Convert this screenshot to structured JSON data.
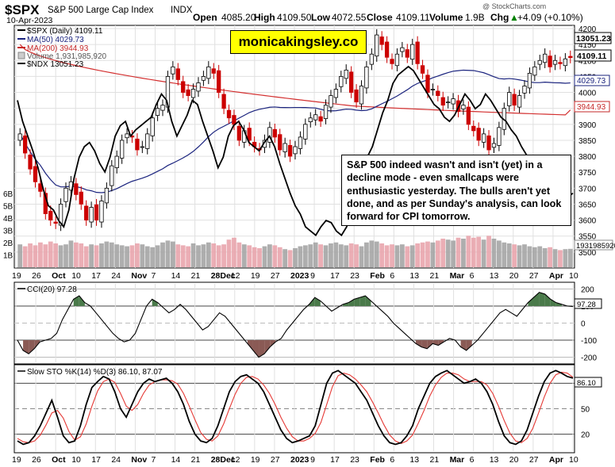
{
  "header": {
    "symbol": "$SPX",
    "name": "S&P 500 Large Cap Index",
    "exchange": "INDX",
    "date": "10-Apr-2023",
    "open_label": "Open",
    "open": "4085.20",
    "high_label": "High",
    "high": "4109.50",
    "low_label": "Low",
    "low": "4072.55",
    "close_label": "Close",
    "close": "4109.11",
    "volume_label": "Volume",
    "volume": "1.9B",
    "chg_label": "Chg",
    "chg": "+4.09 (+0.10%)",
    "chg_arrow": "▲",
    "watermark": "@ StockCharts.com"
  },
  "legend": [
    {
      "label": "$SPX (Daily) 4109.11",
      "color": "#000000"
    },
    {
      "label": "MA(50) 4029.73",
      "color": "#1a237e"
    },
    {
      "label": "MA(200) 3944.93",
      "color": "#c62828"
    },
    {
      "label": "Volume 1,931,985,920",
      "color": "#888888"
    },
    {
      "label": "$NDX 13051.23",
      "color": "#000000"
    }
  ],
  "brand": "monicakingsley.co",
  "annotation": "S&P 500 indeed wasn't  and isn't (yet) in a decline mode - even smallcaps were enthusiastic yesterday. The bulls aren't yet done, and as per Sunday's analysis, can look forward for CPI tomorrow.",
  "colors": {
    "up": "#000000",
    "down": "#cc0000",
    "ma50": "#1a237e",
    "ma200": "#d32f2f",
    "vol_up": "#a0a0a0",
    "vol_down": "#e8a0a8",
    "cci_fill_pos": "#4a7a4a",
    "cci_fill_neg": "#8a5a55",
    "sto_k": "#000000",
    "sto_d": "#e53935",
    "grid": "#e0e0e0"
  },
  "chart_data": [
    {
      "type": "candlestick",
      "title": "$SPX (Daily)",
      "y_axis": {
        "min": 3450,
        "max": 4210,
        "ticks": [
          3500,
          3550,
          3600,
          3650,
          3700,
          3750,
          3800,
          3850,
          3900,
          3950,
          4000,
          4050,
          4100,
          4150,
          4200
        ]
      },
      "x_tick_labels": [
        "19",
        "26",
        "Oct",
        "10",
        "17",
        "24",
        "Nov",
        "7",
        "14",
        "21",
        "28Dec",
        "12",
        "19",
        "27",
        "2023",
        "9",
        "17",
        "23",
        "Feb",
        "6",
        "13",
        "21",
        "Mar",
        "6",
        "13",
        "20",
        "27",
        "Apr",
        "10"
      ],
      "close": [
        3870,
        3810,
        3760,
        3720,
        3690,
        3620,
        3600,
        3590,
        3650,
        3700,
        3720,
        3680,
        3650,
        3600,
        3640,
        3600,
        3660,
        3700,
        3770,
        3800,
        3850,
        3870,
        3860,
        3820,
        3830,
        3870,
        3920,
        3950,
        3960,
        4050,
        4080,
        4040,
        4000,
        3990,
        4010,
        4030,
        4050,
        4080,
        4060,
        4000,
        3950,
        3920,
        3900,
        3850,
        3880,
        3850,
        3830,
        3820,
        3850,
        3890,
        3860,
        3820,
        3840,
        3800,
        3830,
        3860,
        3900,
        3920,
        3930,
        3910,
        3960,
        3990,
        4010,
        4050,
        4070,
        4000,
        3970,
        4020,
        4080,
        4120,
        4180,
        4150,
        4110,
        4090,
        4120,
        4140,
        4110,
        4150,
        4090,
        4060,
        4000,
        4010,
        3990,
        3960,
        3970,
        3980,
        3940,
        3960,
        3900,
        3880,
        3850,
        3870,
        3820,
        3840,
        3890,
        3950,
        4000,
        3960,
        3990,
        4020,
        4060,
        4080,
        4100,
        4120,
        4080,
        4100,
        4090,
        4105,
        4109.11
      ],
      "ma50_last": 4029.73,
      "ma200_last": 3944.93,
      "last_price_label": "4109.11",
      "ma50_label": "4029.73",
      "ma200_label": "3944.93"
    },
    {
      "type": "line",
      "title": "$NDX overlay",
      "last_label": "13051.23",
      "shape": [
        0.72,
        0.62,
        0.55,
        0.48,
        0.4,
        0.3,
        0.22,
        0.2,
        0.15,
        0.12,
        0.2,
        0.35,
        0.45,
        0.5,
        0.52,
        0.48,
        0.42,
        0.38,
        0.45,
        0.55,
        0.6,
        0.62,
        0.55,
        0.58,
        0.6,
        0.62,
        0.64,
        0.7,
        0.75,
        0.72,
        0.62,
        0.55,
        0.6,
        0.65,
        0.72,
        0.7,
        0.62,
        0.55,
        0.48,
        0.4,
        0.45,
        0.55,
        0.6,
        0.62,
        0.58,
        0.52,
        0.5,
        0.48,
        0.52,
        0.55,
        0.5,
        0.42,
        0.35,
        0.28,
        0.22,
        0.18,
        0.12,
        0.1,
        0.08,
        0.12,
        0.15,
        0.14,
        0.1,
        0.08,
        0.12,
        0.2,
        0.3,
        0.4,
        0.45,
        0.5,
        0.58,
        0.66,
        0.72,
        0.8,
        0.84,
        0.86,
        0.88,
        0.86,
        0.82,
        0.78,
        0.74,
        0.7,
        0.68,
        0.64,
        0.62,
        0.65,
        0.7,
        0.75,
        0.72,
        0.68,
        0.7,
        0.75,
        0.72,
        0.68,
        0.64,
        0.62,
        0.58,
        0.55,
        0.5,
        0.46,
        0.42,
        0.38,
        0.32,
        0.3,
        0.28,
        0.26,
        0.24,
        0.26,
        0.28
      ]
    },
    {
      "type": "bar",
      "title": "Volume",
      "y_tick_labels": [
        "1B",
        "2B",
        "3B",
        "4B",
        "5B",
        "6B"
      ],
      "last_label": "1931985920",
      "values_b": [
        2.4,
        2.2,
        2.5,
        2.3,
        2.6,
        2.4,
        2.7,
        2.5,
        2.3,
        2.4,
        2.8,
        2.6,
        2.5,
        2.2,
        2.4,
        2.3,
        2.5,
        2.7,
        2.6,
        2.4,
        2.3,
        2.2,
        2.3,
        2.5,
        2.4,
        2.2,
        2.1,
        2.3,
        2.6,
        2.8,
        2.7,
        2.4,
        2.3,
        2.2,
        2.5,
        2.3,
        2.4,
        2.6,
        2.5,
        2.3,
        2.4,
        2.9,
        3.1,
        2.6,
        2.4,
        2.3,
        2.1,
        2.0,
        2.2,
        2.4,
        2.3,
        2.1,
        1.9,
        1.8,
        2.0,
        2.2,
        2.3,
        2.4,
        2.6,
        2.4,
        2.3,
        2.5,
        2.6,
        2.4,
        2.3,
        2.5,
        2.4,
        2.2,
        2.6,
        2.8,
        2.7,
        2.5,
        2.3,
        2.4,
        2.3,
        2.4,
        2.2,
        2.3,
        2.5,
        2.6,
        2.7,
        2.6,
        2.8,
        3.0,
        2.9,
        2.8,
        3.1,
        3.0,
        3.3,
        3.1,
        3.2,
        2.9,
        3.3,
        3.0,
        2.8,
        2.6,
        2.5,
        2.4,
        2.3,
        2.4,
        2.2,
        2.1,
        2.2,
        2.0,
        2.1,
        1.9,
        1.8,
        1.9,
        1.93
      ]
    },
    {
      "type": "line",
      "title": "CCI(20) 97.28",
      "y_axis": {
        "min": -230,
        "max": 230,
        "ticks": [
          -200,
          -100,
          0,
          100,
          200
        ]
      },
      "y_tick_labels": [
        "200",
        "100",
        "0",
        "-100",
        "-200"
      ],
      "last_label": "97.28",
      "values": [
        -100,
        -160,
        -180,
        -150,
        -110,
        -100,
        -90,
        -60,
        20,
        80,
        140,
        160,
        120,
        100,
        60,
        20,
        -20,
        -60,
        -90,
        -110,
        -100,
        -60,
        20,
        100,
        140,
        120,
        90,
        60,
        80,
        110,
        80,
        40,
        0,
        -40,
        -20,
        20,
        60,
        40,
        0,
        -40,
        -80,
        -120,
        -160,
        -200,
        -180,
        -140,
        -110,
        -90,
        -40,
        0,
        40,
        80,
        110,
        150,
        130,
        100,
        70,
        90,
        110,
        120,
        140,
        150,
        160,
        130,
        100,
        70,
        40,
        0,
        -30,
        -60,
        -90,
        -120,
        -140,
        -150,
        -120,
        -130,
        -110,
        -90,
        -100,
        -140,
        -160,
        -130,
        -100,
        -60,
        -20,
        20,
        60,
        80,
        60,
        40,
        80,
        120,
        150,
        180,
        170,
        140,
        120,
        110,
        100,
        97.28
      ]
    },
    {
      "type": "line",
      "title": "Slow STO %K(14) %D(3) 86.10, 87.07",
      "y_axis": {
        "min": 0,
        "max": 100,
        "ticks": [
          20,
          50,
          80
        ]
      },
      "y_tick_labels": [
        "80",
        "50",
        "20"
      ],
      "last_label": "86.10",
      "k_last": 86.1,
      "d_last": 87.07,
      "k_values": [
        12,
        8,
        10,
        18,
        30,
        45,
        60,
        40,
        18,
        10,
        12,
        30,
        55,
        75,
        82,
        88,
        85,
        70,
        50,
        40,
        55,
        70,
        80,
        85,
        82,
        84,
        86,
        80,
        70,
        55,
        35,
        20,
        12,
        10,
        15,
        30,
        50,
        70,
        82,
        88,
        90,
        85,
        80,
        70,
        55,
        40,
        25,
        15,
        10,
        12,
        15,
        18,
        30,
        55,
        80,
        92,
        95,
        90,
        85,
        80,
        70,
        60,
        45,
        30,
        18,
        10,
        8,
        10,
        18,
        30,
        50,
        65,
        80,
        88,
        92,
        95,
        90,
        85,
        80,
        82,
        85,
        80,
        70,
        55,
        35,
        18,
        10,
        8,
        12,
        25,
        45,
        65,
        82,
        92,
        95,
        92,
        88,
        86.1
      ],
      "d_values": [
        15,
        11,
        10,
        12,
        19,
        31,
        45,
        48,
        39,
        23,
        13,
        17,
        32,
        53,
        71,
        82,
        85,
        81,
        68,
        53,
        48,
        55,
        68,
        78,
        82,
        84,
        84,
        83,
        79,
        68,
        53,
        37,
        22,
        14,
        12,
        18,
        32,
        50,
        67,
        80,
        87,
        88,
        85,
        78,
        68,
        55,
        40,
        27,
        17,
        12,
        12,
        15,
        21,
        34,
        55,
        76,
        89,
        92,
        90,
        85,
        78,
        70,
        58,
        45,
        31,
        19,
        12,
        9,
        12,
        19,
        33,
        48,
        65,
        78,
        87,
        92,
        92,
        90,
        85,
        82,
        82,
        82,
        78,
        68,
        53,
        36,
        21,
        12,
        10,
        15,
        27,
        45,
        64,
        80,
        90,
        93,
        92,
        87.07
      ]
    }
  ]
}
